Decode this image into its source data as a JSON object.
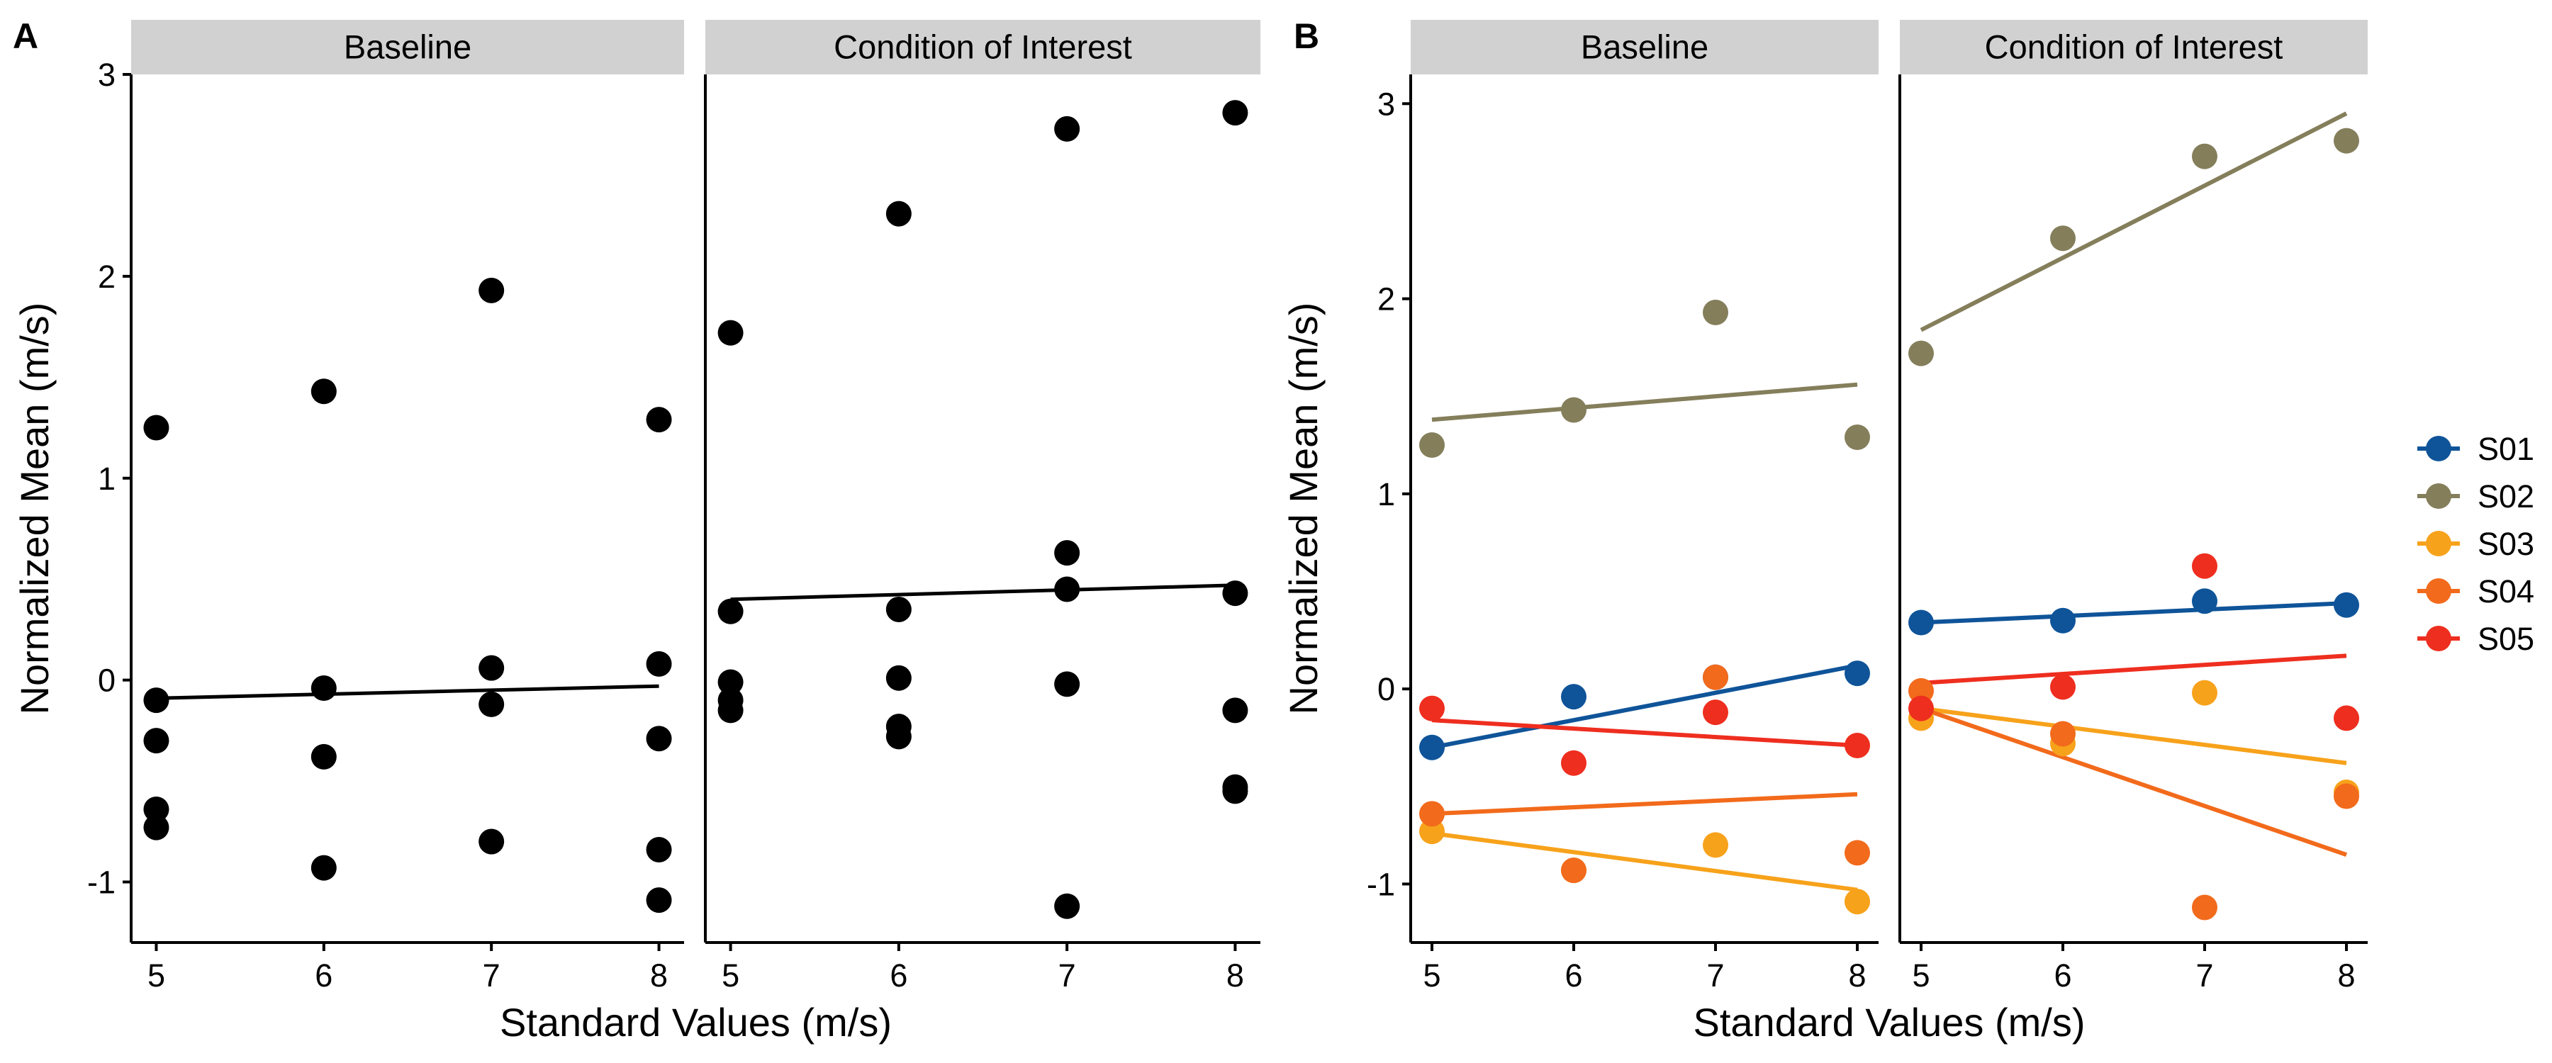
{
  "chart_data": [
    {
      "type": "scatter",
      "panel_label": "A",
      "xlabel": "Standard Values (m/s)",
      "ylabel": "Normalized Mean (m/s)",
      "xlim": [
        4.85,
        8.15
      ],
      "ylim": [
        -1.3,
        3.0
      ],
      "xticks": [
        5,
        6,
        7,
        8
      ],
      "yticks": [
        -1,
        0,
        1,
        2,
        3
      ],
      "grid": false,
      "point_color": "#000000",
      "facets": [
        {
          "strip": "Baseline",
          "points": [
            [
              5,
              1.25
            ],
            [
              5,
              -0.1
            ],
            [
              5,
              -0.3
            ],
            [
              5,
              -0.64
            ],
            [
              5,
              -0.73
            ],
            [
              6,
              1.43
            ],
            [
              6,
              -0.04
            ],
            [
              6,
              -0.38
            ],
            [
              6,
              -0.93
            ],
            [
              7,
              1.93
            ],
            [
              7,
              0.06
            ],
            [
              7,
              -0.12
            ],
            [
              7,
              -0.8
            ],
            [
              8,
              1.29
            ],
            [
              8,
              0.08
            ],
            [
              8,
              -0.29
            ],
            [
              8,
              -0.84
            ],
            [
              8,
              -1.09
            ]
          ],
          "fit": [
            [
              5,
              -0.09
            ],
            [
              8,
              -0.03
            ]
          ]
        },
        {
          "strip": "Condition of Interest",
          "points": [
            [
              5,
              1.72
            ],
            [
              5,
              0.34
            ],
            [
              5,
              -0.01
            ],
            [
              5,
              -0.1
            ],
            [
              5,
              -0.15
            ],
            [
              6,
              2.31
            ],
            [
              6,
              0.35
            ],
            [
              6,
              0.01
            ],
            [
              6,
              -0.23
            ],
            [
              6,
              -0.28
            ],
            [
              7,
              2.73
            ],
            [
              7,
              0.63
            ],
            [
              7,
              0.45
            ],
            [
              7,
              -0.02
            ],
            [
              7,
              -1.12
            ],
            [
              8,
              2.81
            ],
            [
              8,
              0.43
            ],
            [
              8,
              -0.15
            ],
            [
              8,
              -0.53
            ],
            [
              8,
              -0.55
            ]
          ],
          "fit": [
            [
              5,
              0.4
            ],
            [
              8,
              0.47
            ]
          ]
        }
      ]
    },
    {
      "type": "scatter",
      "panel_label": "B",
      "xlabel": "Standard Values (m/s)",
      "ylabel": "Normalized Mean (m/s)",
      "xlim": [
        4.85,
        8.15
      ],
      "ylim": [
        -1.3,
        3.15
      ],
      "xticks": [
        5,
        6,
        7,
        8
      ],
      "yticks": [
        -1,
        0,
        1,
        2,
        3
      ],
      "grid": false,
      "legend_position": "right",
      "series": [
        {
          "name": "S01",
          "color": "#0F5499"
        },
        {
          "name": "S02",
          "color": "#847E5B"
        },
        {
          "name": "S03",
          "color": "#F7A21B"
        },
        {
          "name": "S04",
          "color": "#F26A1B"
        },
        {
          "name": "S05",
          "color": "#EE2E1F"
        }
      ],
      "facets": [
        {
          "strip": "Baseline",
          "points": {
            "S01": [
              [
                5,
                -0.3
              ],
              [
                6,
                -0.04
              ],
              [
                7,
                0.06
              ],
              [
                8,
                0.08
              ]
            ],
            "S02": [
              [
                5,
                1.25
              ],
              [
                6,
                1.43
              ],
              [
                7,
                1.93
              ],
              [
                8,
                1.29
              ]
            ],
            "S03": [
              [
                5,
                -0.73
              ],
              [
                6,
                -0.93
              ],
              [
                7,
                -0.8
              ],
              [
                8,
                -1.09
              ]
            ],
            "S04": [
              [
                5,
                -0.64
              ],
              [
                6,
                -0.93
              ],
              [
                7,
                0.06
              ],
              [
                8,
                -0.84
              ]
            ],
            "S05": [
              [
                5,
                -0.1
              ],
              [
                6,
                -0.38
              ],
              [
                7,
                -0.12
              ],
              [
                8,
                -0.29
              ]
            ]
          },
          "fits": {
            "S01": [
              [
                5,
                -0.3
              ],
              [
                8,
                0.12
              ]
            ],
            "S02": [
              [
                5,
                1.38
              ],
              [
                8,
                1.56
              ]
            ],
            "S03": [
              [
                5,
                -0.74
              ],
              [
                8,
                -1.03
              ]
            ],
            "S04": [
              [
                5,
                -0.64
              ],
              [
                8,
                -0.54
              ]
            ],
            "S05": [
              [
                5,
                -0.16
              ],
              [
                8,
                -0.29
              ]
            ]
          }
        },
        {
          "strip": "Condition of Interest",
          "points": {
            "S01": [
              [
                5,
                0.34
              ],
              [
                6,
                0.35
              ],
              [
                7,
                0.45
              ],
              [
                8,
                0.43
              ]
            ],
            "S02": [
              [
                5,
                1.72
              ],
              [
                6,
                2.31
              ],
              [
                7,
                2.73
              ],
              [
                8,
                2.81
              ]
            ],
            "S03": [
              [
                5,
                -0.15
              ],
              [
                6,
                -0.28
              ],
              [
                7,
                -0.02
              ],
              [
                8,
                -0.53
              ]
            ],
            "S04": [
              [
                5,
                -0.01
              ],
              [
                6,
                -0.23
              ],
              [
                7,
                -1.12
              ],
              [
                8,
                -0.55
              ]
            ],
            "S05": [
              [
                5,
                -0.1
              ],
              [
                6,
                0.01
              ],
              [
                7,
                0.63
              ],
              [
                8,
                -0.15
              ]
            ]
          },
          "fits": {
            "S01": [
              [
                5,
                0.34
              ],
              [
                8,
                0.44
              ]
            ],
            "S02": [
              [
                5,
                1.84
              ],
              [
                8,
                2.95
              ]
            ],
            "S03": [
              [
                5,
                -0.1
              ],
              [
                8,
                -0.38
              ]
            ],
            "S04": [
              [
                5,
                -0.1
              ],
              [
                8,
                -0.85
              ]
            ],
            "S05": [
              [
                5,
                0.03
              ],
              [
                8,
                0.17
              ]
            ]
          }
        }
      ]
    }
  ]
}
